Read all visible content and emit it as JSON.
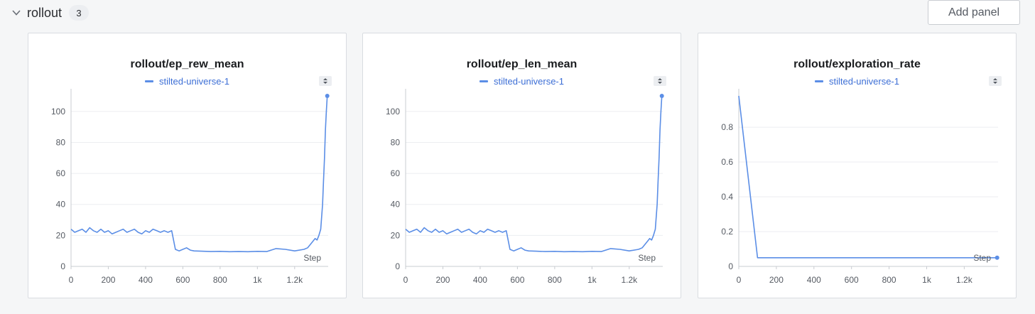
{
  "section": {
    "title": "rollout",
    "count": "3",
    "add_panel_label": "Add panel"
  },
  "colors": {
    "series": "#5b8ee6",
    "legend_text": "#3d6fd6"
  },
  "chart_data": [
    {
      "type": "line",
      "title": "rollout/ep_rew_mean",
      "xlabel": "Step",
      "xlim": [
        0,
        1380
      ],
      "ylim": [
        0,
        110
      ],
      "xticks": [
        0,
        200,
        400,
        600,
        800,
        1000,
        1200
      ],
      "xtick_labels": [
        "0",
        "200",
        "400",
        "600",
        "800",
        "1k",
        "1.2k"
      ],
      "yticks": [
        0,
        20,
        40,
        60,
        80,
        100
      ],
      "ytick_labels": [
        "0",
        "20",
        "40",
        "60",
        "80",
        "100"
      ],
      "series": [
        {
          "name": "stilted-universe-1",
          "x": [
            0,
            20,
            40,
            60,
            80,
            100,
            120,
            140,
            160,
            180,
            200,
            220,
            240,
            260,
            280,
            300,
            320,
            340,
            360,
            380,
            400,
            420,
            440,
            460,
            480,
            500,
            520,
            540,
            560,
            580,
            600,
            620,
            640,
            660,
            700,
            750,
            800,
            850,
            900,
            950,
            1000,
            1050,
            1100,
            1150,
            1200,
            1250,
            1270,
            1290,
            1310,
            1320,
            1330,
            1340,
            1350,
            1355,
            1360,
            1365,
            1370,
            1375
          ],
          "y": [
            24,
            22,
            23,
            24,
            22,
            25,
            23,
            22,
            24,
            22,
            23,
            21,
            22,
            23,
            24,
            22,
            23,
            24,
            22,
            21,
            23,
            22,
            24,
            23,
            22,
            23,
            22,
            23,
            11,
            10,
            11,
            12,
            10.5,
            10,
            9.8,
            9.6,
            9.7,
            9.5,
            9.6,
            9.5,
            9.7,
            9.6,
            11.5,
            11,
            10,
            11,
            12,
            15,
            18,
            17,
            20,
            24,
            40,
            55,
            70,
            88,
            100,
            110
          ]
        }
      ]
    },
    {
      "type": "line",
      "title": "rollout/ep_len_mean",
      "xlabel": "Step",
      "xlim": [
        0,
        1380
      ],
      "ylim": [
        0,
        110
      ],
      "xticks": [
        0,
        200,
        400,
        600,
        800,
        1000,
        1200
      ],
      "xtick_labels": [
        "0",
        "200",
        "400",
        "600",
        "800",
        "1k",
        "1.2k"
      ],
      "yticks": [
        0,
        20,
        40,
        60,
        80,
        100
      ],
      "ytick_labels": [
        "0",
        "20",
        "40",
        "60",
        "80",
        "100"
      ],
      "series": [
        {
          "name": "stilted-universe-1",
          "x": [
            0,
            20,
            40,
            60,
            80,
            100,
            120,
            140,
            160,
            180,
            200,
            220,
            240,
            260,
            280,
            300,
            320,
            340,
            360,
            380,
            400,
            420,
            440,
            460,
            480,
            500,
            520,
            540,
            560,
            580,
            600,
            620,
            640,
            660,
            700,
            750,
            800,
            850,
            900,
            950,
            1000,
            1050,
            1100,
            1150,
            1200,
            1250,
            1270,
            1290,
            1310,
            1320,
            1330,
            1340,
            1350,
            1355,
            1360,
            1365,
            1370,
            1375
          ],
          "y": [
            24,
            22,
            23,
            24,
            22,
            25,
            23,
            22,
            24,
            22,
            23,
            21,
            22,
            23,
            24,
            22,
            23,
            24,
            22,
            21,
            23,
            22,
            24,
            23,
            22,
            23,
            22,
            23,
            11,
            10,
            11,
            12,
            10.5,
            10,
            9.8,
            9.6,
            9.7,
            9.5,
            9.6,
            9.5,
            9.7,
            9.6,
            11.5,
            11,
            10,
            11,
            12,
            15,
            18,
            17,
            20,
            24,
            40,
            55,
            70,
            88,
            100,
            110
          ]
        }
      ]
    },
    {
      "type": "line",
      "title": "rollout/exploration_rate",
      "xlabel": "Step",
      "xlim": [
        0,
        1380
      ],
      "ylim": [
        0,
        0.98
      ],
      "xticks": [
        0,
        200,
        400,
        600,
        800,
        1000,
        1200
      ],
      "xtick_labels": [
        "0",
        "200",
        "400",
        "600",
        "800",
        "1k",
        "1.2k"
      ],
      "yticks": [
        0,
        0.2,
        0.4,
        0.6,
        0.8
      ],
      "ytick_labels": [
        "0",
        "0.2",
        "0.4",
        "0.6",
        "0.8"
      ],
      "series": [
        {
          "name": "stilted-universe-1",
          "x": [
            0,
            100,
            1375
          ],
          "y": [
            0.98,
            0.05,
            0.05
          ]
        }
      ]
    }
  ]
}
